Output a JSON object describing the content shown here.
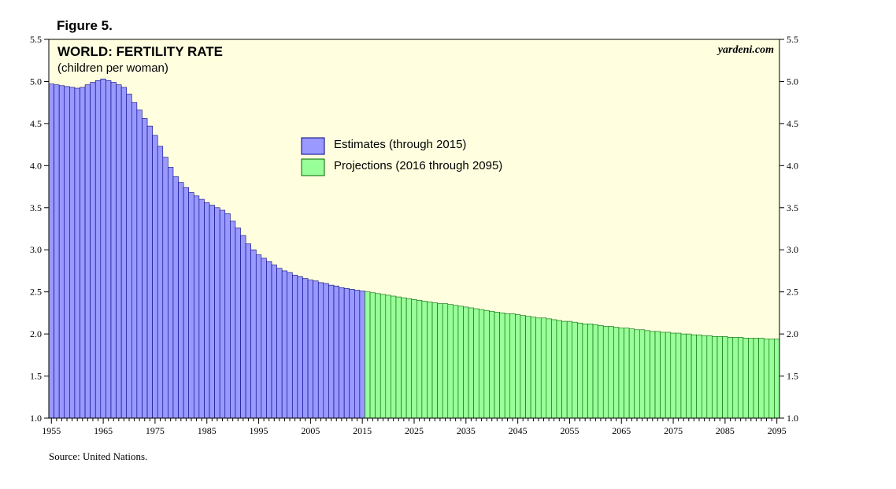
{
  "figure_label": "Figure 5.",
  "source": "Source: United Nations.",
  "brand": "yardeni.com",
  "colors": {
    "plot_bg": "#ffffe0",
    "estimates": "#9999ff",
    "projections": "#99ff99",
    "bar_stroke": "#000080",
    "proj_stroke": "#006400"
  },
  "chart_data": {
    "type": "bar",
    "title": "WORLD: FERTILITY RATE",
    "subtitle": "(children per woman)",
    "ylim": [
      1.0,
      5.5
    ],
    "xlim": [
      1955,
      2095
    ],
    "yticks": [
      "1.0",
      "1.5",
      "2.0",
      "2.5",
      "3.0",
      "3.5",
      "4.0",
      "4.5",
      "5.0",
      "5.5"
    ],
    "xticks": [
      "1955",
      "1965",
      "1975",
      "1985",
      "1995",
      "2005",
      "2015",
      "2025",
      "2035",
      "2045",
      "2055",
      "2065",
      "2075",
      "2085",
      "2095"
    ],
    "legend": [
      "Estimates (through 2015)",
      "Projections (2016 through 2095)"
    ],
    "series": [
      {
        "name": "Estimates (through 2015)",
        "start_year": 1955,
        "values": [
          4.97,
          4.96,
          4.95,
          4.94,
          4.93,
          4.92,
          4.93,
          4.96,
          4.99,
          5.01,
          5.03,
          5.01,
          4.99,
          4.96,
          4.93,
          4.85,
          4.75,
          4.66,
          4.56,
          4.47,
          4.36,
          4.23,
          4.1,
          3.98,
          3.87,
          3.8,
          3.74,
          3.68,
          3.64,
          3.6,
          3.56,
          3.53,
          3.5,
          3.47,
          3.43,
          3.34,
          3.26,
          3.17,
          3.07,
          3.0,
          2.94,
          2.9,
          2.86,
          2.82,
          2.78,
          2.75,
          2.73,
          2.7,
          2.68,
          2.66,
          2.64,
          2.63,
          2.61,
          2.6,
          2.58,
          2.57,
          2.55,
          2.54,
          2.53,
          2.52,
          2.51
        ]
      },
      {
        "name": "Projections (2016 through 2095)",
        "start_year": 2016,
        "values": [
          2.5,
          2.49,
          2.48,
          2.47,
          2.46,
          2.45,
          2.44,
          2.43,
          2.42,
          2.41,
          2.4,
          2.39,
          2.38,
          2.37,
          2.36,
          2.36,
          2.35,
          2.34,
          2.33,
          2.32,
          2.31,
          2.3,
          2.29,
          2.28,
          2.27,
          2.26,
          2.25,
          2.24,
          2.24,
          2.23,
          2.22,
          2.21,
          2.2,
          2.19,
          2.19,
          2.18,
          2.17,
          2.16,
          2.15,
          2.15,
          2.14,
          2.13,
          2.12,
          2.12,
          2.11,
          2.1,
          2.09,
          2.09,
          2.08,
          2.07,
          2.07,
          2.06,
          2.05,
          2.05,
          2.04,
          2.03,
          2.03,
          2.02,
          2.02,
          2.01,
          2.01,
          2.0,
          2.0,
          1.99,
          1.99,
          1.98,
          1.98,
          1.97,
          1.97,
          1.97,
          1.96,
          1.96,
          1.96,
          1.95,
          1.95,
          1.95,
          1.95,
          1.94,
          1.94,
          1.94
        ]
      }
    ]
  }
}
